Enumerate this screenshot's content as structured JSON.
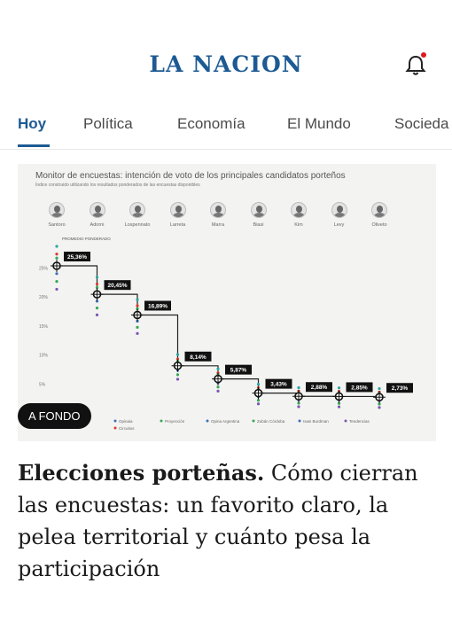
{
  "header": {
    "logo": "LA NACION"
  },
  "nav": {
    "tabs": [
      {
        "label": "Hoy",
        "active": true
      },
      {
        "label": "Política",
        "active": false
      },
      {
        "label": "Economía",
        "active": false
      },
      {
        "label": "El Mundo",
        "active": false
      },
      {
        "label": "Socieda",
        "active": false
      }
    ]
  },
  "article": {
    "badge": "A FONDO",
    "headline_bold": "Elecciones porteñas.",
    "headline_rest": " Cómo cierran las encuestas: un favorito claro, la pelea territorial y cuánto pesa la participación"
  },
  "chart_data": {
    "type": "scatter",
    "title": "Monitor de encuestas: intención de voto de los principales candidatos porteños",
    "subtitle": "Índice construido utilizando los resultados ponderados de las encuestas disponibles",
    "average_label": "PROMEDIO PONDERADO",
    "categories": [
      "Santoro",
      "Adorni",
      "Lospennato",
      "Larreta",
      "Marra",
      "Biasi",
      "Kim",
      "Levy",
      "Oliveto"
    ],
    "values": [
      25.36,
      20.45,
      16.89,
      8.14,
      5.87,
      3.43,
      2.88,
      2.85,
      2.73
    ],
    "value_labels": [
      "25,36%",
      "20,45%",
      "16,89%",
      "8,14%",
      "5,87%",
      "3,43%",
      "2,88%",
      "2,85%",
      "2,73%"
    ],
    "yticks": [
      "25%",
      "20%",
      "15%",
      "10%",
      "5%"
    ],
    "ylim": [
      0,
      30
    ],
    "legend": [
      "Opinaia",
      "Proyección",
      "Opina Argentina",
      "Zubán Córdoba",
      "Isasi Burdman",
      "Tendencias",
      "Circuitos"
    ],
    "colors": {
      "green": "#35a853",
      "red": "#d93a2b",
      "blue": "#3b6fb6",
      "teal": "#2aa6a0",
      "purple": "#7b55b5",
      "marker": "#111111"
    }
  }
}
